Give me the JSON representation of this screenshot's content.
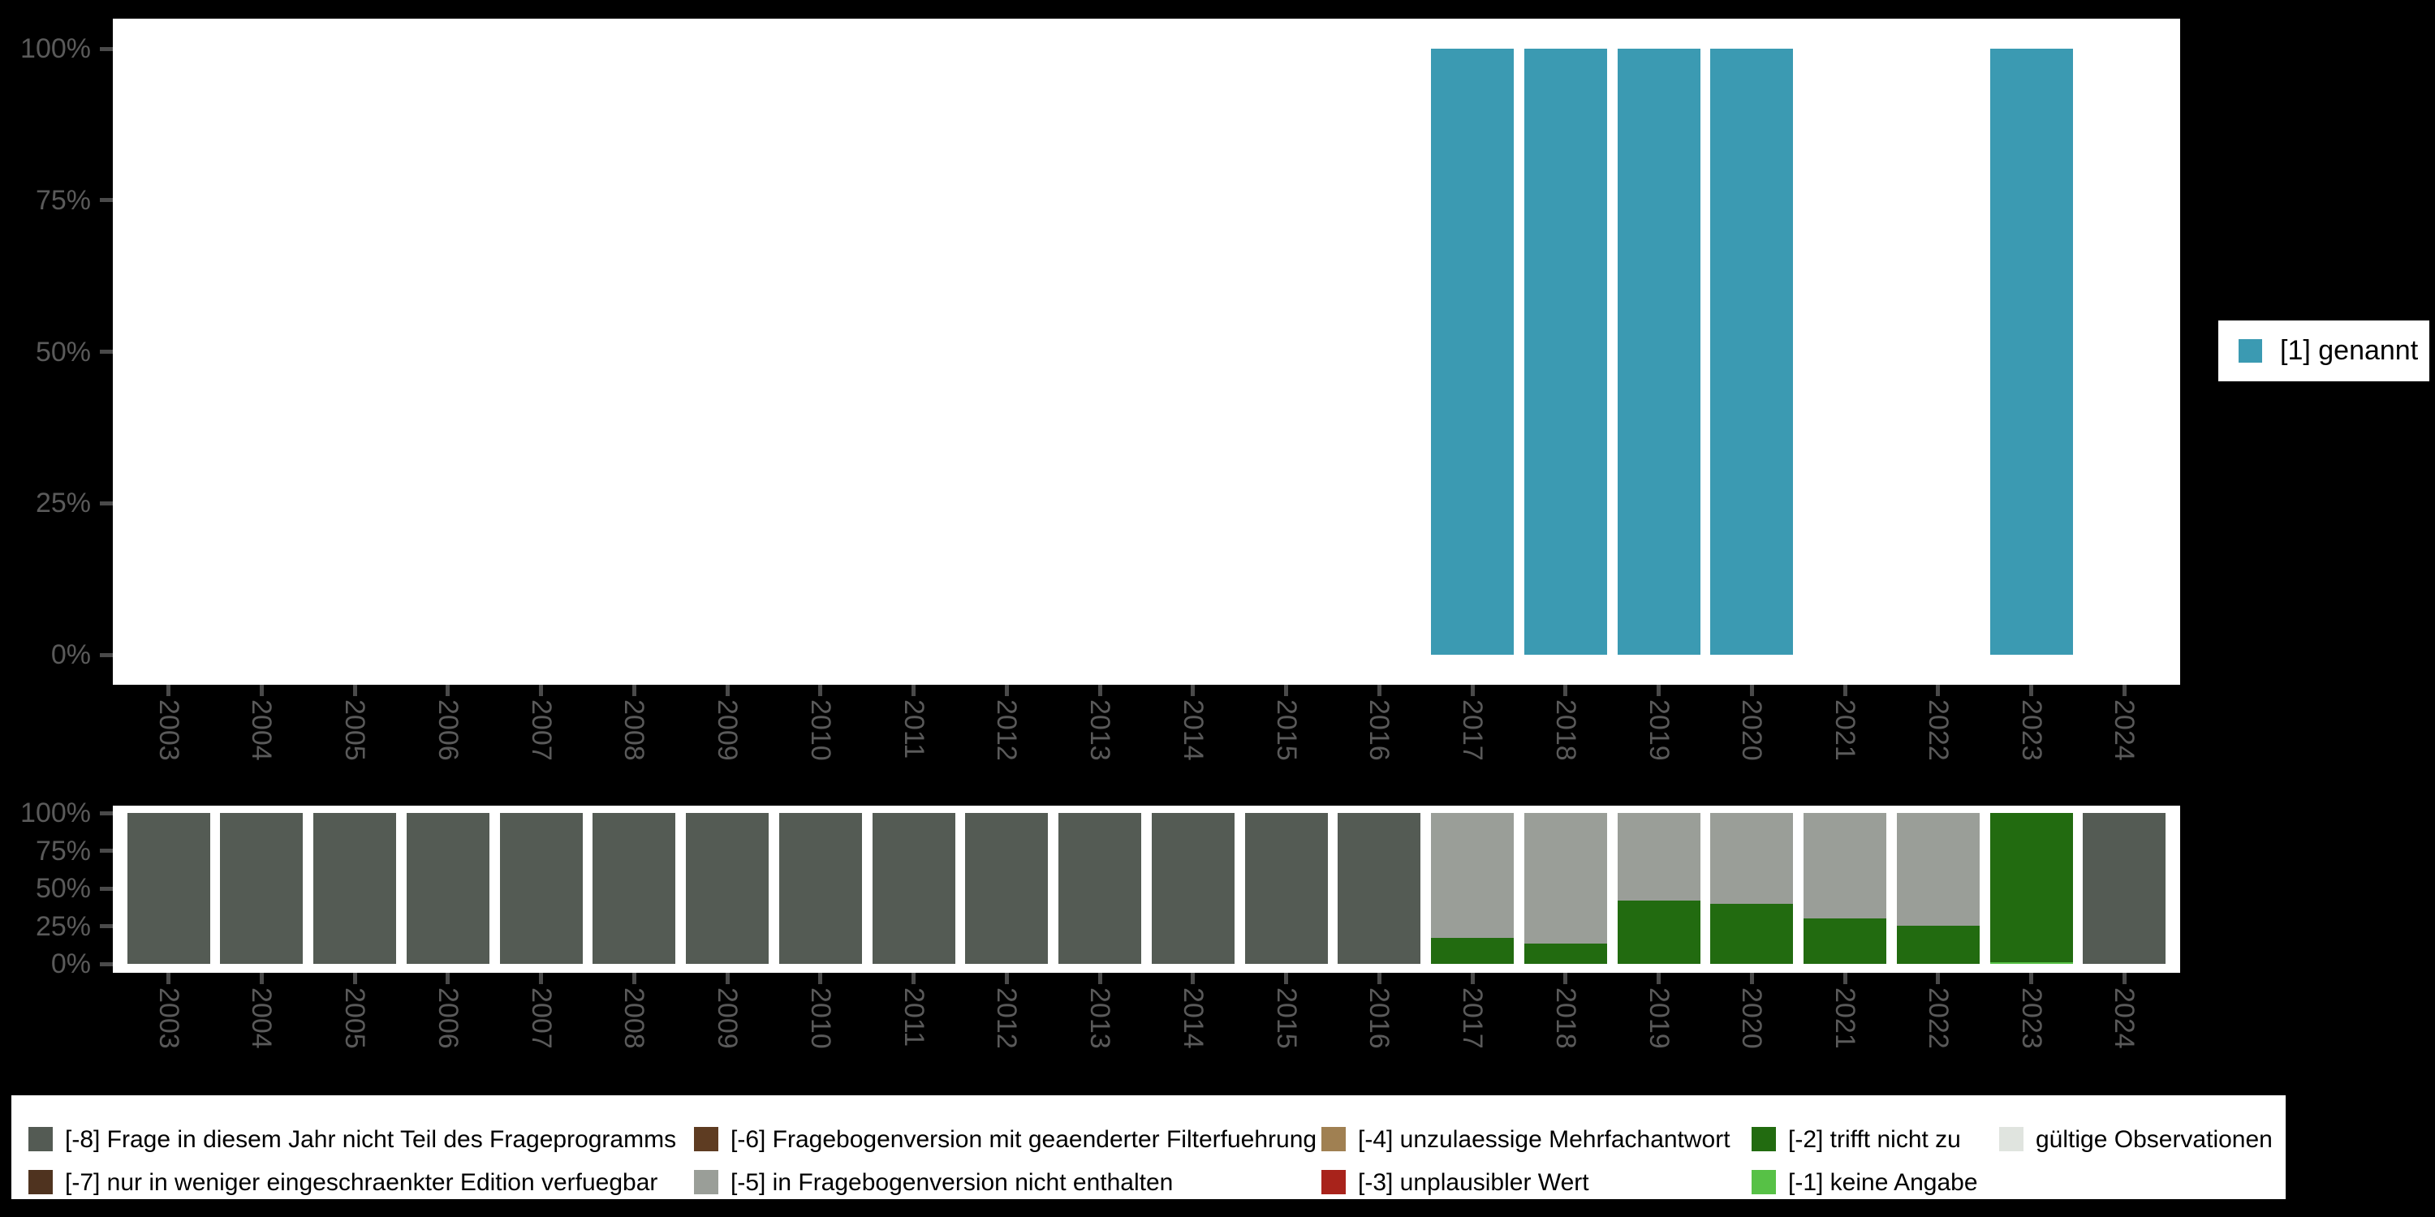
{
  "figure": {
    "background": "#000000",
    "panel_background": "#ffffff",
    "axis_text_color": "#5a5a5a",
    "tick_color": "#4a4a4a"
  },
  "years": [
    "2003",
    "2004",
    "2005",
    "2006",
    "2007",
    "2008",
    "2009",
    "2010",
    "2011",
    "2012",
    "2013",
    "2014",
    "2015",
    "2016",
    "2017",
    "2018",
    "2019",
    "2020",
    "2021",
    "2022",
    "2023",
    "2024"
  ],
  "y_axis_ticks": [
    "100%",
    "75%",
    "50%",
    "25%",
    "0%"
  ],
  "legend_right": {
    "items": [
      {
        "label": "[1] genannt",
        "color": "#3b9ab2"
      }
    ]
  },
  "legend_bottom": {
    "columns": [
      [
        {
          "label": "[-8] Frage in diesem Jahr nicht Teil des Frageprogramms",
          "color": "#545b54"
        },
        {
          "label": "[-7] nur in weniger eingeschraenkter Edition verfuegbar",
          "color": "#4f331f"
        }
      ],
      [
        {
          "label": "[-6] Fragebogenversion mit geaenderter Filterfuehrung",
          "color": "#5e3c22"
        },
        {
          "label": "[-5] in Fragebogenversion nicht enthalten",
          "color": "#9a9e98"
        }
      ],
      [
        {
          "label": "[-4] unzulaessige Mehrfachantwort",
          "color": "#a08052"
        },
        {
          "label": "[-3] unplausibler Wert",
          "color": "#a8231b"
        }
      ],
      [
        {
          "label": "[-2] trifft nicht zu",
          "color": "#226b10"
        },
        {
          "label": "[-1] keine Angabe",
          "color": "#57c146"
        }
      ],
      [
        {
          "label": "gültige Observationen",
          "color": "#e0e4df"
        }
      ]
    ]
  },
  "chart_data": [
    {
      "type": "bar",
      "title": "Frequencies by year (top panel)",
      "categories": [
        "2003",
        "2004",
        "2005",
        "2006",
        "2007",
        "2008",
        "2009",
        "2010",
        "2011",
        "2012",
        "2013",
        "2014",
        "2015",
        "2016",
        "2017",
        "2018",
        "2019",
        "2020",
        "2021",
        "2022",
        "2023",
        "2024"
      ],
      "series": [
        {
          "name": "[1] genannt",
          "color": "#3b9ab2",
          "values": [
            0,
            0,
            0,
            0,
            0,
            0,
            0,
            0,
            0,
            0,
            0,
            0,
            0,
            0,
            100,
            100,
            100,
            100,
            0,
            0,
            100,
            0
          ]
        }
      ],
      "xlabel": "",
      "ylabel": "",
      "ylim": [
        0,
        100
      ],
      "y_tick_labels": [
        "0%",
        "25%",
        "50%",
        "75%",
        "100%"
      ],
      "grid": false,
      "legend_position": "right"
    },
    {
      "type": "bar",
      "subtype": "stacked",
      "title": "Missing values by year (bottom panel)",
      "categories": [
        "2003",
        "2004",
        "2005",
        "2006",
        "2007",
        "2008",
        "2009",
        "2010",
        "2011",
        "2012",
        "2013",
        "2014",
        "2015",
        "2016",
        "2017",
        "2018",
        "2019",
        "2020",
        "2021",
        "2022",
        "2023",
        "2024"
      ],
      "series": [
        {
          "name": "[-1] keine Angabe",
          "color": "#57c146",
          "values": [
            0,
            0,
            0,
            0,
            0,
            0,
            0,
            0,
            0,
            0,
            0,
            0,
            0,
            0,
            0,
            0,
            0,
            0,
            0,
            0,
            1,
            0
          ]
        },
        {
          "name": "[-2] trifft nicht zu",
          "color": "#226b10",
          "values": [
            0,
            0,
            0,
            0,
            0,
            0,
            0,
            0,
            0,
            0,
            0,
            0,
            0,
            0,
            17.4,
            13.3,
            41.8,
            39.7,
            30.2,
            25.3,
            99,
            0
          ]
        },
        {
          "name": "[-5] in Fragebogenversion nicht enthalten",
          "color": "#9a9e98",
          "values": [
            0,
            0,
            0,
            0,
            0,
            0,
            0,
            0,
            0,
            0,
            0,
            0,
            0,
            0,
            82.6,
            86.7,
            58.2,
            60.3,
            69.8,
            74.7,
            0,
            0
          ]
        },
        {
          "name": "[-8] Frage in diesem Jahr nicht Teil des Frageprogramms",
          "color": "#545b54",
          "values": [
            100,
            100,
            100,
            100,
            100,
            100,
            100,
            100,
            100,
            100,
            100,
            100,
            100,
            100,
            0,
            0,
            0,
            0,
            0,
            0,
            0,
            100
          ]
        }
      ],
      "xlabel": "",
      "ylabel": "",
      "ylim": [
        0,
        100
      ],
      "y_tick_labels": [
        "0%",
        "25%",
        "50%",
        "75%",
        "100%"
      ],
      "grid": false,
      "legend_position": "bottom"
    }
  ]
}
